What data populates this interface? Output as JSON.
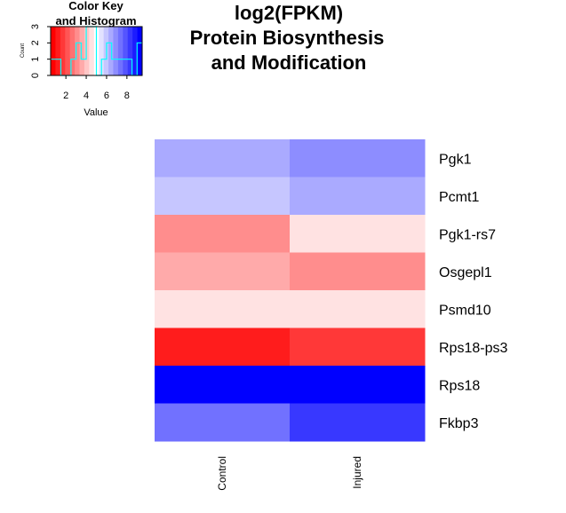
{
  "chart_data": {
    "type": "heatmap",
    "title_lines": [
      "log2(FPKM)",
      "Protein Biosynthesis",
      "and Modification"
    ],
    "columns": [
      "Control",
      "Injured"
    ],
    "rows": [
      "Pgk1",
      "Pcmt1",
      "Pgk1-rs7",
      "Osgepl1",
      "Psmd10",
      "Rps18-ps3",
      "Rps18",
      "Fkbp3"
    ],
    "values": [
      [
        6.6,
        7.2
      ],
      [
        5.9,
        6.6
      ],
      [
        2.8,
        4.3
      ],
      [
        3.6,
        2.8
      ],
      [
        4.3,
        4.3
      ],
      [
        1.0,
        1.4
      ],
      [
        9.5,
        9.5
      ],
      [
        7.6,
        8.3
      ]
    ],
    "color_scale": {
      "low": "#FF0000",
      "mid": "#FFFFFF",
      "high": "#0000FF",
      "breaks": [
        0.5,
        1.0,
        1.5,
        2.0,
        2.5,
        3.0,
        3.5,
        4.0,
        4.5,
        5.0,
        5.5,
        6.0,
        6.5,
        7.0,
        7.5,
        8.0,
        8.5,
        9.0,
        9.5
      ],
      "colors": [
        "#FF0000",
        "#FF1C1C",
        "#FF3838",
        "#FF5555",
        "#FF7171",
        "#FF8D8D",
        "#FFAAAA",
        "#FFC6C6",
        "#FFE2E2",
        "#FFFFFF",
        "#E2E2FF",
        "#C6C6FF",
        "#AAAAFF",
        "#8D8DFF",
        "#7171FF",
        "#5555FF",
        "#3838FF",
        "#1C1CFF",
        "#0000FF"
      ]
    },
    "color_key": {
      "title_lines": [
        "Color Key",
        "and Histogram"
      ],
      "xlabel": "Value",
      "ylabel": "Count",
      "xticks": [
        2,
        4,
        6,
        8
      ],
      "yticks": [
        0,
        1,
        2,
        3
      ],
      "xlim": [
        0.5,
        9.5
      ],
      "ylim": [
        0,
        3
      ],
      "histogram_line_color": "#00FFFF",
      "histogram": [
        {
          "x": 0.5,
          "y": 1
        },
        {
          "x": 1.5,
          "y": 0
        },
        {
          "x": 2.5,
          "y": 1
        },
        {
          "x": 3.0,
          "y": 2
        },
        {
          "x": 3.5,
          "y": 1
        },
        {
          "x": 4.0,
          "y": 3
        },
        {
          "x": 5.0,
          "y": 0
        },
        {
          "x": 5.5,
          "y": 1
        },
        {
          "x": 6.0,
          "y": 2
        },
        {
          "x": 6.5,
          "y": 1
        },
        {
          "x": 8.5,
          "y": 0
        },
        {
          "x": 9.0,
          "y": 2
        }
      ]
    }
  }
}
